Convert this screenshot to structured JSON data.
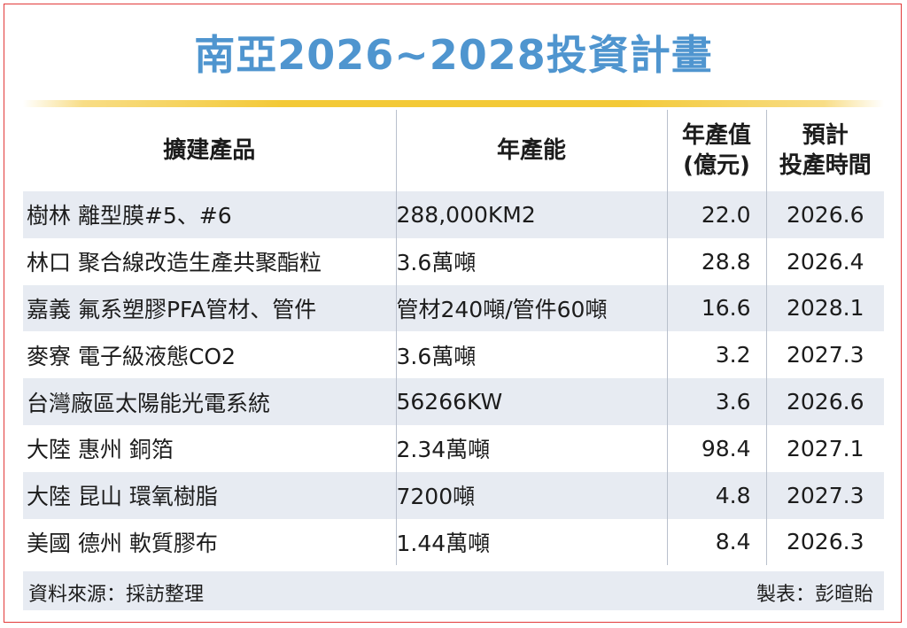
{
  "title": "南亞2026~2028投資計畫",
  "table": {
    "headers": {
      "product": "擴建產品",
      "capacity": "年產能",
      "value_line1": "年產值",
      "value_line2": "(億元)",
      "time_line1": "預計",
      "time_line2": "投產時間"
    },
    "rows": [
      {
        "product": "樹林 離型膜#5、#6",
        "capacity": "288,000KM2",
        "value": "22.0",
        "time": "2026.6"
      },
      {
        "product": "林口 聚合線改造生產共聚酯粒",
        "capacity": "3.6萬噸",
        "value": "28.8",
        "time": "2026.4"
      },
      {
        "product": "嘉義 氟系塑膠PFA管材、管件",
        "capacity": "管材240噸/管件60噸",
        "value": "16.6",
        "time": "2028.1"
      },
      {
        "product": "麥寮 電子級液態CO2",
        "capacity": "3.6萬噸",
        "value": "3.2",
        "time": "2027.3"
      },
      {
        "product": "台灣廠區太陽能光電系統",
        "capacity": "56266KW",
        "value": "3.6",
        "time": "2026.6"
      },
      {
        "product": "大陸 惠州 銅箔",
        "capacity": "2.34萬噸",
        "value": "98.4",
        "time": "2027.1"
      },
      {
        "product": "大陸 昆山 環氧樹脂",
        "capacity": "7200噸",
        "value": "4.8",
        "time": "2027.3"
      },
      {
        "product": "美國 德州 軟質膠布",
        "capacity": "1.44萬噸",
        "value": "8.4",
        "time": "2026.3"
      }
    ]
  },
  "footer": {
    "source": "資料來源：採訪整理",
    "maker": "製表：彭暄貽"
  },
  "colors": {
    "title": "#4f95cf",
    "rule": "#f3c937",
    "row_shade": "#e7ebf2",
    "border": "#e23a3a"
  }
}
